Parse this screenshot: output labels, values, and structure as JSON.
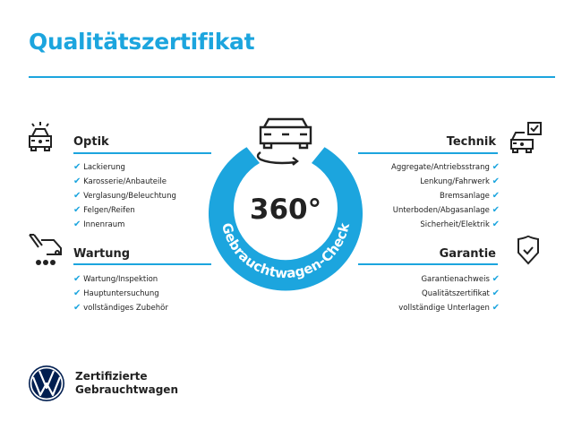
{
  "title": "Qualitätszertifikat",
  "center": {
    "big": "360°",
    "ring_text": "Gebrauchtwagen-Check"
  },
  "sections": {
    "optik": {
      "heading": "Optik",
      "items": [
        "Lackierung",
        "Karosserie/Anbauteile",
        "Verglasung/Beleuchtung",
        "Felgen/Reifen",
        "Innenraum"
      ]
    },
    "wartung": {
      "heading": "Wartung",
      "items": [
        "Wartung/Inspektion",
        "Hauptuntersuchung",
        "vollständiges Zubehör"
      ]
    },
    "technik": {
      "heading": "Technik",
      "items": [
        "Aggregate/Antriebsstrang",
        "Lenkung/Fahrwerk",
        "Bremsanlage",
        "Unterboden/Abgasanlage",
        "Sicherheit/Elektrik"
      ]
    },
    "garantie": {
      "heading": "Garantie",
      "items": [
        "Garantienachweis",
        "Qualitätszertifikat",
        "vollständige Unterlagen"
      ]
    }
  },
  "check": "✔",
  "brand": {
    "line1": "Zertifizierte",
    "line2": "Gebrauchtwagen"
  },
  "colors": {
    "accent": "#1ca5de",
    "text": "#222222",
    "logo": "#001e50"
  }
}
